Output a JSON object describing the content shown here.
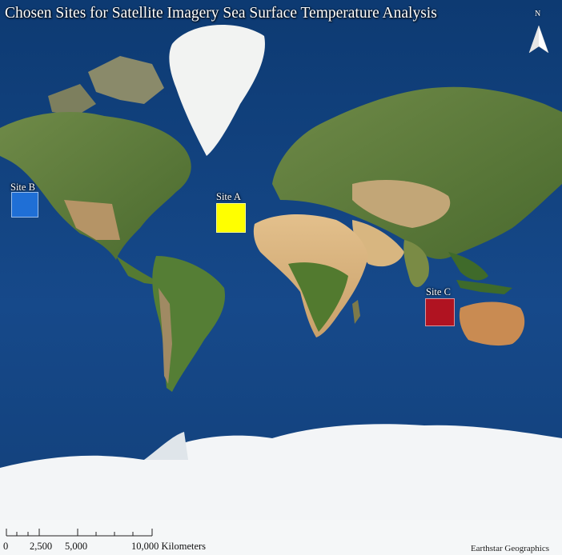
{
  "map": {
    "title": "Chosen Sites for Satellite Imagery Sea Surface Temperature Analysis",
    "north_arrow": {
      "label": "N",
      "icon": "north-arrow-icon"
    },
    "basemap_credit": "Earthstar Geographics",
    "sites": [
      {
        "id": "siteA",
        "label": "Site A",
        "color": "#ffff00"
      },
      {
        "id": "siteB",
        "label": "Site B",
        "color": "#1f6fd6"
      },
      {
        "id": "siteC",
        "label": "Site C",
        "color": "#b01321"
      }
    ],
    "scale_bar": {
      "labels": [
        "0",
        "2,500",
        "5,000",
        "10,000 Kilometers"
      ]
    },
    "colors": {
      "ocean": "#12427a",
      "land": "#5f7a3a",
      "desert": "#d8b27c",
      "ice": "#f4f6f8"
    }
  }
}
